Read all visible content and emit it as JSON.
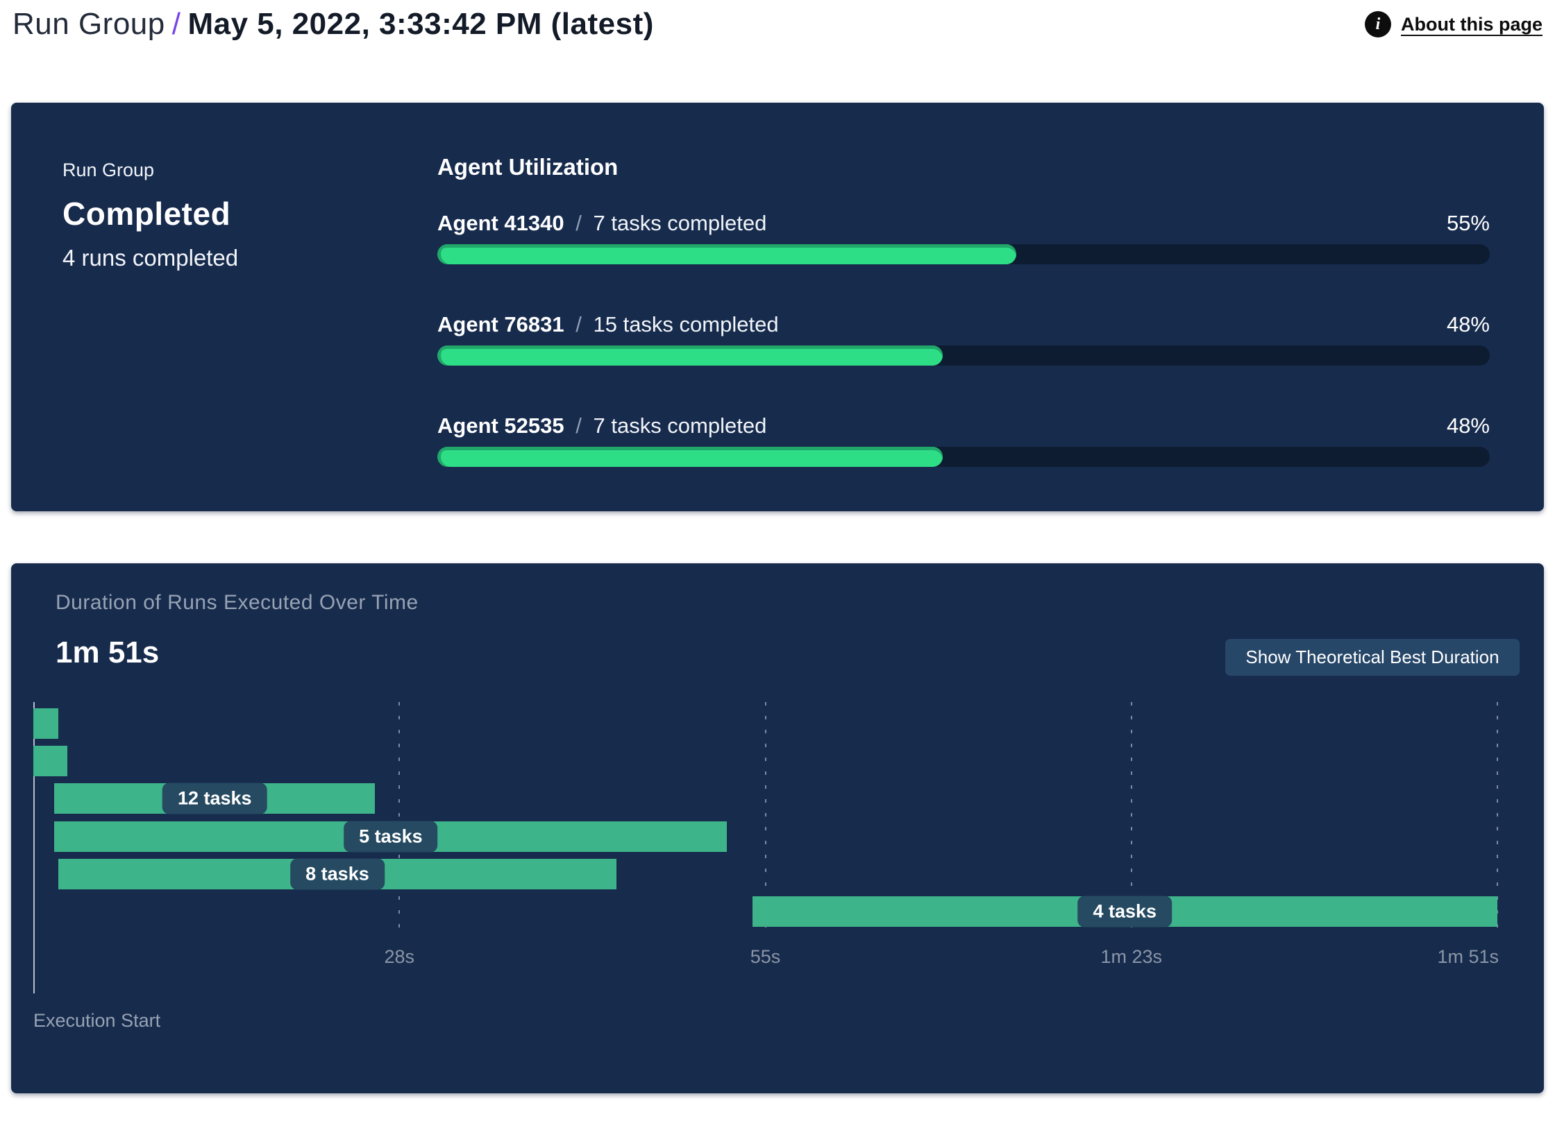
{
  "header": {
    "title_prefix": "Run Group",
    "separator": "/",
    "title_date": "May 5, 2022, 3:33:42 PM (latest)",
    "about_link": "About this page",
    "info_icon_glyph": "i"
  },
  "run_group_card": {
    "label": "Run Group",
    "status": "Completed",
    "runs_completed": "4 runs completed",
    "section_title": "Agent Utilization",
    "agents": [
      {
        "name": "Agent 41340",
        "separator": "/",
        "tasks": "7 tasks completed",
        "percent_label": "55%",
        "percent": 55
      },
      {
        "name": "Agent 76831",
        "separator": "/",
        "tasks": "15 tasks completed",
        "percent_label": "48%",
        "percent": 48
      },
      {
        "name": "Agent 52535",
        "separator": "/",
        "tasks": "7 tasks completed",
        "percent_label": "48%",
        "percent": 48
      }
    ]
  },
  "duration_card": {
    "title": "Duration of Runs Executed Over Time",
    "total_duration": "1m 51s",
    "button_label": "Show Theoretical Best Duration",
    "execution_start_label": "Execution Start"
  },
  "colors": {
    "card_background": "#172b4d",
    "progress_fill": "#2ede87",
    "progress_track": "#0d1c31",
    "gantt_bar": "#3eb48a",
    "gantt_label_pill": "#254a61",
    "accent_slash": "#7743e6",
    "button_background": "#274769",
    "muted_text": "#97a3b4"
  },
  "chart_data": [
    {
      "type": "bar",
      "title": "Agent Utilization",
      "categories": [
        "Agent 41340",
        "Agent 76831",
        "Agent 52535"
      ],
      "values": [
        55,
        48,
        48
      ],
      "value_suffix": "%",
      "annotations": [
        "7 tasks completed",
        "15 tasks completed",
        "7 tasks completed"
      ],
      "xlim": [
        0,
        100
      ],
      "orientation": "horizontal"
    },
    {
      "type": "bar",
      "subtype": "gantt",
      "title": "Duration of Runs Executed Over Time",
      "total_duration": "1m 51s",
      "xlabel": "Execution Start",
      "xlim_seconds": [
        0,
        111
      ],
      "grid": true,
      "ticks": [
        {
          "t": 27.75,
          "label": "28s"
        },
        {
          "t": 55.5,
          "label": "55s"
        },
        {
          "t": 83.25,
          "label": "1m 23s"
        },
        {
          "t": 111,
          "label": "1m 51s"
        }
      ],
      "bars": [
        {
          "start_s": 0,
          "end_s": 1.9,
          "label": ""
        },
        {
          "start_s": 0,
          "end_s": 2.6,
          "label": ""
        },
        {
          "start_s": 1.6,
          "end_s": 25.9,
          "label": "12 tasks"
        },
        {
          "start_s": 1.6,
          "end_s": 52.6,
          "label": "5 tasks"
        },
        {
          "start_s": 1.9,
          "end_s": 44.2,
          "label": "8 tasks"
        },
        {
          "start_s": 54.5,
          "end_s": 111,
          "label": "4 tasks"
        }
      ]
    }
  ]
}
